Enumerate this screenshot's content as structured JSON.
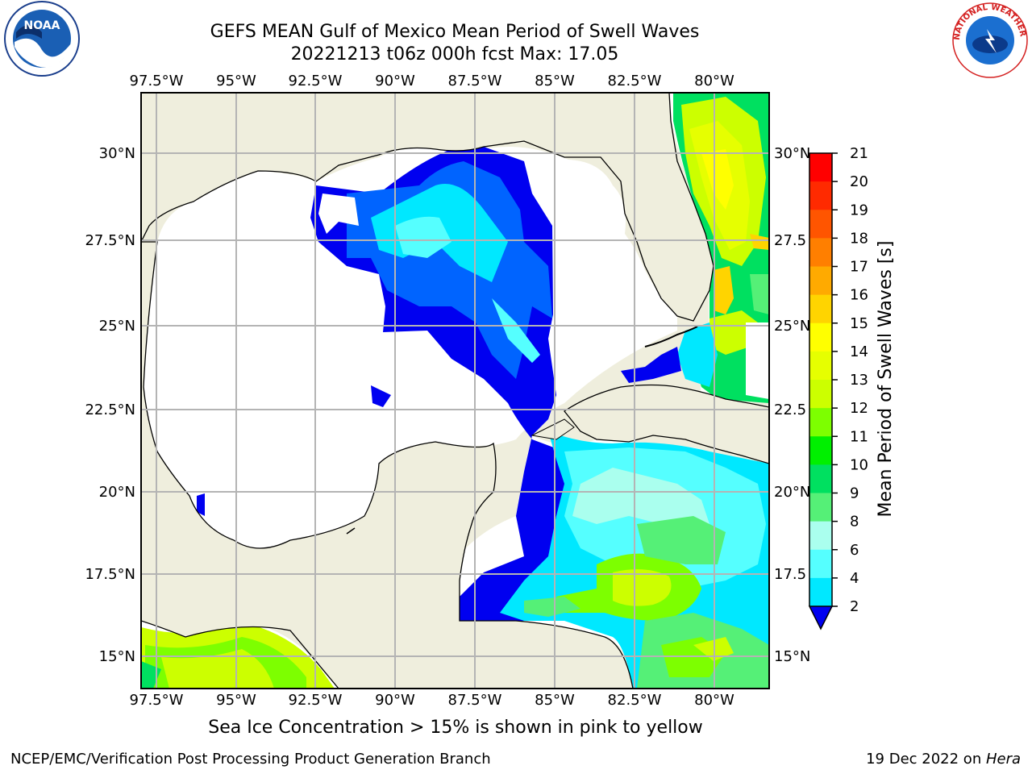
{
  "title": {
    "line1": "GEFS MEAN Gulf of Mexico Mean Period of Swell Waves",
    "line2": "20221213 t06z 000h fcst   Max: 17.05"
  },
  "map": {
    "lon_labels": [
      "97.5°W",
      "95°W",
      "92.5°W",
      "90°W",
      "87.5°W",
      "85°W",
      "82.5°W",
      "80°W"
    ],
    "lat_labels_left": [
      "30°N",
      "27.5°N",
      "25°N",
      "22.5°N",
      "20°N",
      "17.5°N",
      "15°N"
    ],
    "lat_labels_right": [
      "30°N",
      "27.5",
      "25°N",
      "22.5",
      "20°N",
      "17.5",
      "15°N"
    ],
    "colors": {
      "land": "#efeedd",
      "ocean_nodata": "#ffffff",
      "grid": "#b4b4b4",
      "coast": "#000000"
    }
  },
  "colorbar": {
    "label": "Mean Period of Swell Waves [s]",
    "ticks": [
      "21",
      "20",
      "19",
      "18",
      "17",
      "16",
      "15",
      "14",
      "13",
      "12",
      "11",
      "10",
      "9",
      "8",
      "6",
      "4",
      "2"
    ],
    "colors": [
      "#ff0000",
      "#ff2a00",
      "#ff5500",
      "#ff7f00",
      "#ffaa00",
      "#ffd400",
      "#ffff00",
      "#e6ff00",
      "#ccff00",
      "#7dff00",
      "#00f000",
      "#00e060",
      "#55f077",
      "#aaffee",
      "#55ffff",
      "#00e8ff",
      "#0064ff",
      "#0000f0"
    ]
  },
  "caption": "Sea Ice Concentration > 15% is shown in pink to yellow",
  "footer": {
    "left": "NCEP/EMC/Verification Post Processing Product Generation Branch",
    "right_prefix": "19 Dec 2022 on ",
    "right_italic": "Hera"
  },
  "logos": {
    "noaa_text": "NOAA",
    "nws_text": "NATIONAL WEATHER SERVICE"
  }
}
